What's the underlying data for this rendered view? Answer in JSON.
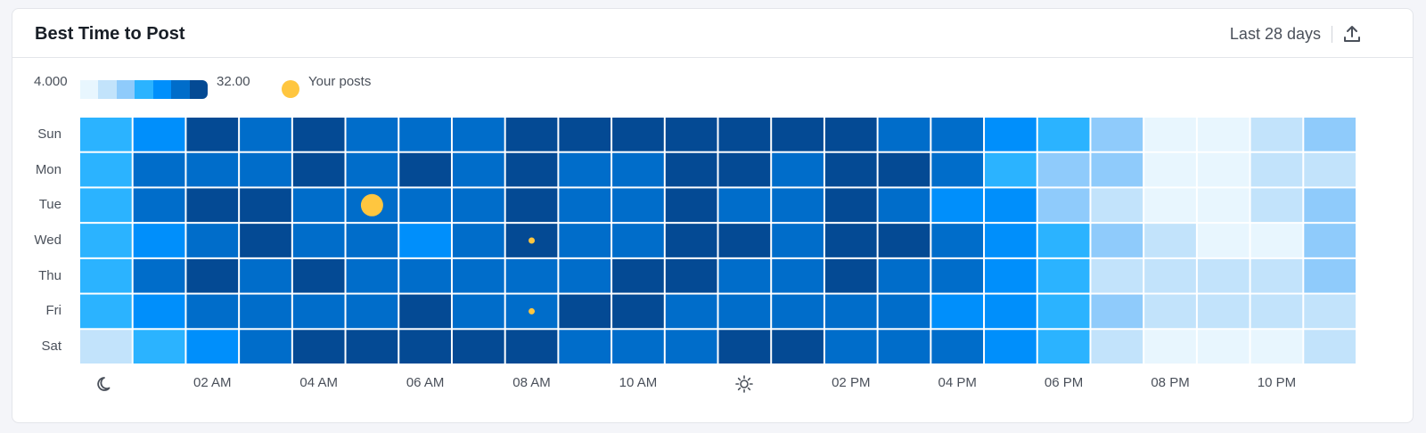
{
  "header": {
    "title": "Best Time to Post",
    "period": "Last 28 days",
    "export_icon": "upload-icon"
  },
  "legend": {
    "min_label": "4.000",
    "max_label": "32.00",
    "posts_label": "Your posts",
    "scale_colors": [
      "#e8f6fe",
      "#c2e3fb",
      "#8fcbfb",
      "#2bb3ff",
      "#008ffb",
      "#006dca",
      "#044a94"
    ]
  },
  "colors": {
    "posts_dot": "#ffc63f",
    "grid_background": "#ffffff"
  },
  "chart_data": {
    "type": "heatmap",
    "days": [
      "Sun",
      "Mon",
      "Tue",
      "Wed",
      "Thu",
      "Fri",
      "Sat"
    ],
    "hours": [
      "00",
      "01",
      "02",
      "03",
      "04",
      "05",
      "06",
      "07",
      "08",
      "09",
      "10",
      "11",
      "12",
      "13",
      "14",
      "15",
      "16",
      "17",
      "18",
      "19",
      "20",
      "21",
      "22",
      "23"
    ],
    "x_tick_labels": [
      {
        "hour": 0,
        "icon": "moon-icon"
      },
      {
        "hour": 2,
        "label": "02 AM"
      },
      {
        "hour": 4,
        "label": "04 AM"
      },
      {
        "hour": 6,
        "label": "06 AM"
      },
      {
        "hour": 8,
        "label": "08 AM"
      },
      {
        "hour": 10,
        "label": "10 AM"
      },
      {
        "hour": 12,
        "icon": "sun-icon"
      },
      {
        "hour": 14,
        "label": "02 PM"
      },
      {
        "hour": 16,
        "label": "04 PM"
      },
      {
        "hour": 18,
        "label": "06 PM"
      },
      {
        "hour": 20,
        "label": "08 PM"
      },
      {
        "hour": 22,
        "label": "10 PM"
      }
    ],
    "color_range": [
      4.0,
      32.0
    ],
    "levels": [
      [
        3,
        4,
        6,
        5,
        6,
        5,
        5,
        5,
        6,
        6,
        6,
        6,
        6,
        6,
        6,
        5,
        5,
        4,
        3,
        2,
        0,
        0,
        1,
        2
      ],
      [
        3,
        5,
        5,
        5,
        6,
        5,
        6,
        5,
        6,
        5,
        5,
        6,
        6,
        5,
        6,
        6,
        5,
        3,
        2,
        2,
        0,
        0,
        1,
        1
      ],
      [
        3,
        5,
        6,
        6,
        5,
        5,
        5,
        5,
        6,
        5,
        5,
        6,
        5,
        5,
        6,
        5,
        4,
        4,
        2,
        1,
        0,
        0,
        1,
        2
      ],
      [
        3,
        4,
        5,
        6,
        5,
        5,
        4,
        5,
        6,
        5,
        5,
        6,
        6,
        5,
        6,
        6,
        5,
        4,
        3,
        2,
        1,
        0,
        0,
        2
      ],
      [
        3,
        5,
        6,
        5,
        6,
        5,
        5,
        5,
        5,
        5,
        6,
        6,
        5,
        5,
        6,
        5,
        5,
        4,
        3,
        1,
        1,
        1,
        1,
        2
      ],
      [
        3,
        4,
        5,
        5,
        5,
        5,
        6,
        5,
        5,
        6,
        6,
        5,
        5,
        5,
        5,
        5,
        4,
        4,
        3,
        2,
        1,
        1,
        1,
        1
      ],
      [
        1,
        3,
        4,
        5,
        6,
        6,
        6,
        6,
        6,
        5,
        5,
        5,
        6,
        6,
        5,
        5,
        5,
        4,
        3,
        1,
        0,
        0,
        0,
        1
      ]
    ],
    "posts": [
      {
        "day": "Tue",
        "hour": 5,
        "size": "large"
      },
      {
        "day": "Wed",
        "hour": 8,
        "size": "small"
      },
      {
        "day": "Fri",
        "hour": 8,
        "size": "small"
      }
    ]
  }
}
